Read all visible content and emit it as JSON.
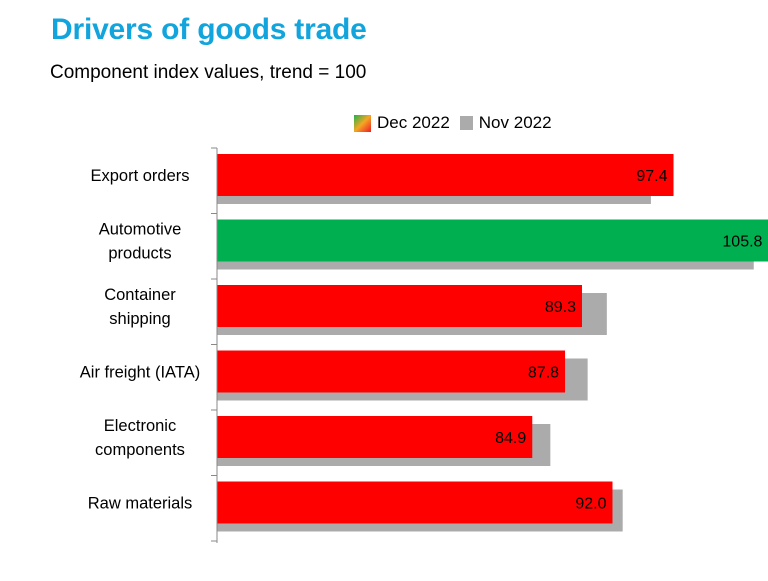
{
  "header": {
    "title": "Drivers of goods trade",
    "subtitle": "Component index values, trend = 100"
  },
  "legend": {
    "dec_label": "Dec 2022",
    "nov_label": "Nov 2022"
  },
  "colors": {
    "title": "#12a4dc",
    "below_trend": "#ff0000",
    "above_trend": "#00b050",
    "previous": "#ababab"
  },
  "chart_data": {
    "type": "bar",
    "orientation": "horizontal",
    "title": "Drivers of goods trade",
    "subtitle": "Component index values, trend = 100",
    "categories": [
      [
        "Export orders"
      ],
      [
        "Automotive",
        "products"
      ],
      [
        "Container",
        "shipping"
      ],
      [
        "Air freight (IATA)"
      ],
      [
        "Electronic",
        "components"
      ],
      [
        "Raw materials"
      ]
    ],
    "series": [
      {
        "name": "Dec 2022",
        "values": [
          97.4,
          105.8,
          89.3,
          87.8,
          84.9,
          92.0
        ],
        "labels": [
          "97.4",
          "105.8",
          "89.3",
          "87.8",
          "84.9",
          "92.0"
        ]
      },
      {
        "name": "Nov 2022",
        "values": [
          95.4,
          104.5,
          91.5,
          89.8,
          86.5,
          92.9
        ]
      }
    ],
    "trend": 100,
    "xlim": [
      57,
      106.6
    ],
    "legend_position": "top",
    "grid": false
  }
}
